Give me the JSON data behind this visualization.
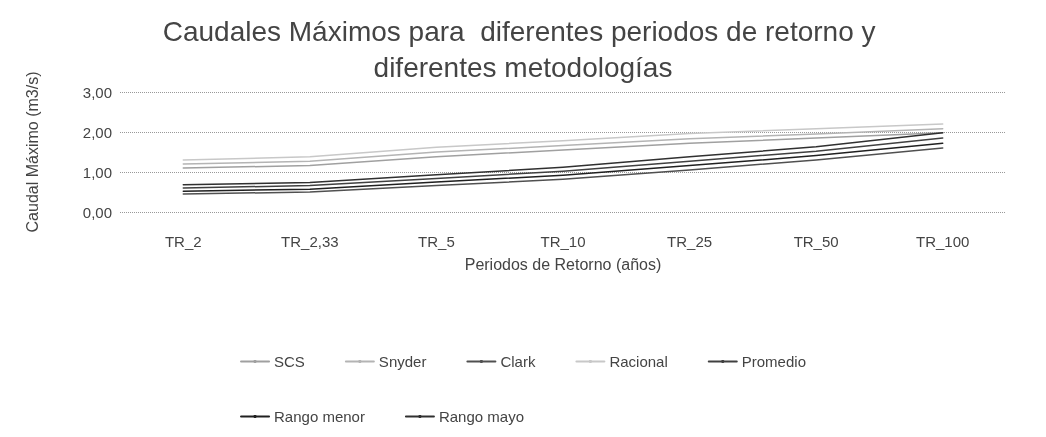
{
  "chart_data": {
    "type": "line",
    "title": "Caudales Máximos para  diferentes periodos de retorno y diferentes metodologías",
    "xlabel": "Periodos de Retorno (años)",
    "ylabel": "Caudal Máximo (m3/s)",
    "categories": [
      "TR_2",
      "TR_2,33",
      "TR_5",
      "TR_10",
      "TR_25",
      "TR_50",
      "TR_100"
    ],
    "ylim": [
      0,
      3
    ],
    "yticks": [
      {
        "value": 0,
        "label": "0,00"
      },
      {
        "value": 1,
        "label": "1,00"
      },
      {
        "value": 2,
        "label": "2,00"
      },
      {
        "value": 3,
        "label": "3,00"
      }
    ],
    "grid": "y",
    "legend": "bottom",
    "marker": "none",
    "series": [
      {
        "name": "SCS",
        "color": "#a0a0a0",
        "values": [
          1.1,
          1.16,
          1.38,
          1.55,
          1.72,
          1.85,
          1.98
        ]
      },
      {
        "name": "Snyder",
        "color": "#b4b4b4",
        "values": [
          1.2,
          1.27,
          1.5,
          1.66,
          1.83,
          1.95,
          2.08
        ]
      },
      {
        "name": "Clark",
        "color": "#505050",
        "values": [
          0.45,
          0.5,
          0.66,
          0.82,
          1.05,
          1.3,
          1.6
        ]
      },
      {
        "name": "Racional",
        "color": "#c8c8c8",
        "values": [
          1.3,
          1.38,
          1.62,
          1.78,
          1.96,
          2.08,
          2.2
        ]
      },
      {
        "name": "Promedio",
        "color": "#404040",
        "values": [
          0.6,
          0.66,
          0.84,
          1.02,
          1.27,
          1.52,
          1.85
        ]
      },
      {
        "name": "Rango menor",
        "color": "#202020",
        "values": [
          0.52,
          0.57,
          0.75,
          0.92,
          1.16,
          1.41,
          1.72
        ]
      },
      {
        "name": "Rango mayo",
        "color": "#303030",
        "values": [
          0.68,
          0.74,
          0.93,
          1.12,
          1.38,
          1.63,
          1.98
        ]
      }
    ]
  }
}
